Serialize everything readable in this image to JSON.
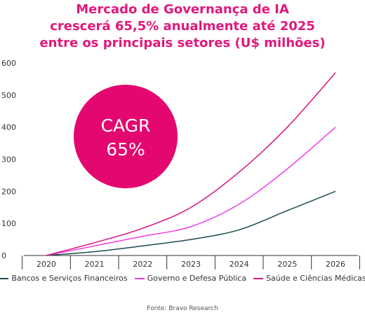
{
  "chart_data": {
    "type": "line",
    "title_lines": [
      "Mercado de Governança de IA",
      "crescerá 65,5% anualmente até 2025",
      "entre os principais setores (U$ milhões)"
    ],
    "x": [
      "2020",
      "2021",
      "2022",
      "2023",
      "2024",
      "2025",
      "2026"
    ],
    "ylim": [
      0,
      600
    ],
    "yticks": [
      0,
      100,
      200,
      300,
      400,
      500,
      600
    ],
    "grid": false,
    "legend_position": "bottom",
    "series": [
      {
        "name": "Bancos e Serviços Financeiros",
        "color": "#1c4a50",
        "values": [
          0,
          12,
          30,
          50,
          80,
          140,
          200
        ]
      },
      {
        "name": "Governo e Defesa Pública",
        "color": "#f03ce6",
        "values": [
          0,
          30,
          60,
          90,
          160,
          270,
          400
        ]
      },
      {
        "name": "Saúde e Ciências Médicas",
        "color": "#d6137e",
        "values": [
          0,
          40,
          85,
          150,
          260,
          400,
          570
        ]
      }
    ],
    "annotation": {
      "line1": "CAGR",
      "line2": "65%",
      "color": "#e3076f"
    },
    "source": "Fonte: Bravo Research"
  }
}
